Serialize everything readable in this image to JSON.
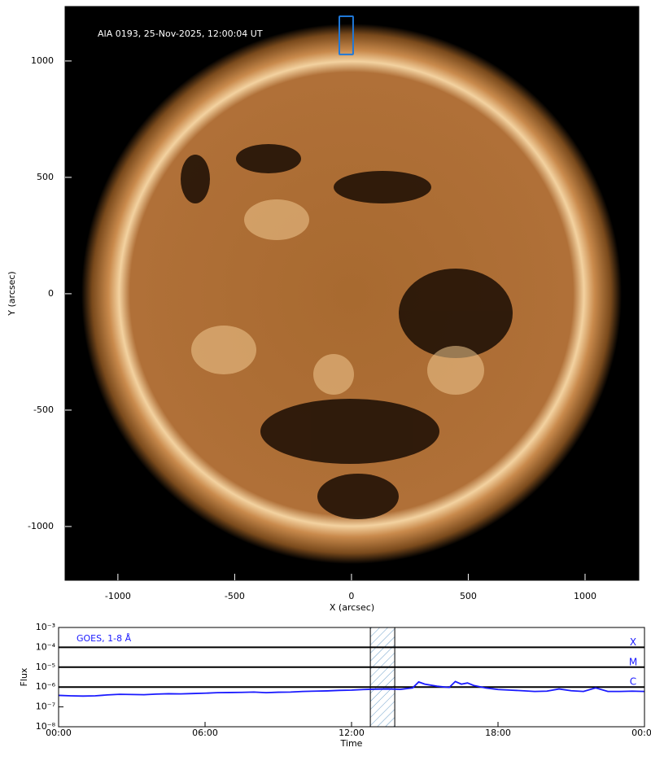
{
  "chart_data": [
    {
      "type": "image",
      "annotation": "AIA 0193, 25-Nov-2025, 12:00:04 UT",
      "xlabel": "X (arcsec)",
      "ylabel": "Y (arcsec)",
      "xlim": [
        -1226,
        1230
      ],
      "ylim": [
        -1231,
        1234
      ],
      "xticks": [
        -1000,
        -500,
        0,
        500,
        1000
      ],
      "yticks": [
        -1000,
        -500,
        0,
        500,
        1000
      ],
      "region": {
        "x": [
          -52,
          7
        ],
        "y": [
          1028,
          1192
        ],
        "color": "#1f78d8"
      }
    },
    {
      "type": "line",
      "xlabel": "Time",
      "ylabel": "Flux",
      "xlim": [
        0,
        24
      ],
      "xticks": [
        {
          "value": 0,
          "label": "00:00"
        },
        {
          "value": 6,
          "label": "06:00"
        },
        {
          "value": 12,
          "label": "12:00"
        },
        {
          "value": 18,
          "label": "18:00"
        },
        {
          "value": 24,
          "label": "00:00"
        }
      ],
      "ylim": [
        1e-08,
        0.001
      ],
      "ylog": true,
      "yticks": [
        {
          "value": 1e-08,
          "label": "10⁻⁸"
        },
        {
          "value": 1e-07,
          "label": "10⁻⁷"
        },
        {
          "value": 1e-06,
          "label": "10⁻⁶"
        },
        {
          "value": 1e-05,
          "label": "10⁻⁵"
        },
        {
          "value": 0.0001,
          "label": "10⁻⁴"
        },
        {
          "value": 0.001,
          "label": "10⁻³"
        }
      ],
      "levels": [
        {
          "value": 0.0001,
          "label": "X"
        },
        {
          "value": 1e-05,
          "label": "M"
        },
        {
          "value": 1e-06,
          "label": "C"
        }
      ],
      "highlight": [
        12.77,
        13.77
      ],
      "legend": "upper left",
      "x": [
        0,
        0.5,
        1,
        1.5,
        2,
        2.5,
        3,
        3.5,
        4,
        4.5,
        5,
        5.5,
        6,
        6.5,
        7,
        7.5,
        8,
        8.5,
        9,
        9.5,
        10,
        10.5,
        11,
        11.5,
        12,
        12.5,
        13,
        13.5,
        14,
        14.5,
        14.75,
        15,
        15.5,
        16,
        16.25,
        16.5,
        16.75,
        17,
        17.5,
        18,
        18.5,
        19,
        19.5,
        20,
        20.5,
        21,
        21.5,
        22,
        22.5,
        23,
        23.5,
        24
      ],
      "series": [
        {
          "name": "GOES, 1-8 Å",
          "color": "#1a1aff",
          "values": [
            3.8e-07,
            3.6e-07,
            3.5e-07,
            3.6e-07,
            4e-07,
            4.3e-07,
            4.2e-07,
            4.1e-07,
            4.4e-07,
            4.6e-07,
            4.5e-07,
            4.7e-07,
            4.9e-07,
            5.2e-07,
            5.3e-07,
            5.4e-07,
            5.6e-07,
            5.2e-07,
            5.5e-07,
            5.6e-07,
            6e-07,
            6.2e-07,
            6.4e-07,
            6.8e-07,
            7e-07,
            7.5e-07,
            7.8e-07,
            8e-07,
            7.6e-07,
            9e-07,
            1.8e-06,
            1.4e-06,
            1.1e-06,
            9.5e-07,
            1.9e-06,
            1.4e-06,
            1.6e-06,
            1.2e-06,
            9e-07,
            7.5e-07,
            7e-07,
            6.5e-07,
            6e-07,
            6.2e-07,
            8e-07,
            6.5e-07,
            6e-07,
            9e-07,
            6e-07,
            6e-07,
            6.2e-07,
            6e-07
          ]
        }
      ]
    }
  ]
}
